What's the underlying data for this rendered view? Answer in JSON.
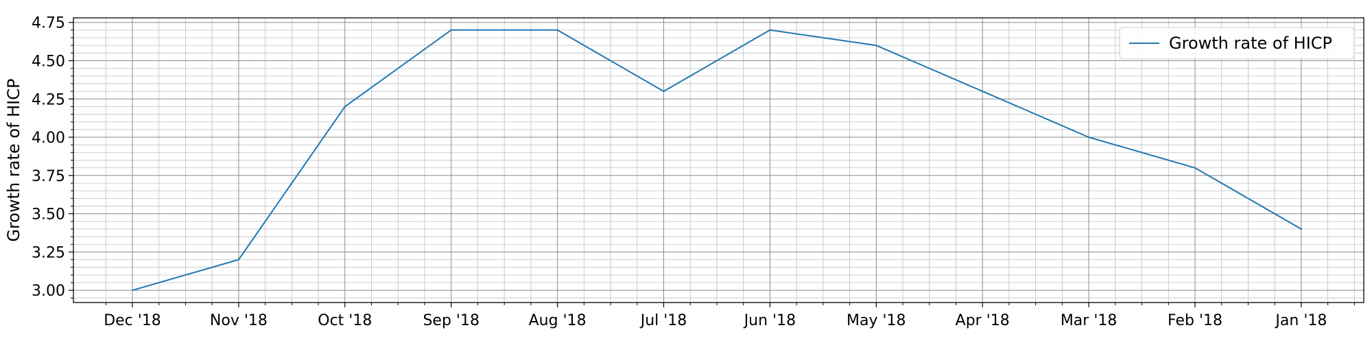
{
  "chart_data": {
    "type": "line",
    "title": "",
    "xlabel": "",
    "ylabel": "Growth rate of HICP",
    "categories": [
      "Dec '18",
      "Nov '18",
      "Oct '18",
      "Sep '18",
      "Aug '18",
      "Jul '18",
      "Jun '18",
      "May '18",
      "Apr '18",
      "Mar '18",
      "Feb '18",
      "Jan '18"
    ],
    "series": [
      {
        "name": "Growth rate of HICP",
        "values": [
          3.0,
          3.2,
          4.2,
          4.7,
          4.7,
          4.3,
          4.7,
          4.6,
          4.3,
          4.0,
          3.8,
          3.4
        ],
        "color": "#1f77b4"
      }
    ],
    "ylim": [
      2.92,
      4.78
    ],
    "yticks": [
      "3.00",
      "3.25",
      "3.50",
      "3.75",
      "4.00",
      "4.25",
      "4.50",
      "4.75"
    ],
    "grid": true,
    "grid_minor": true,
    "legend_position": "top-right"
  }
}
